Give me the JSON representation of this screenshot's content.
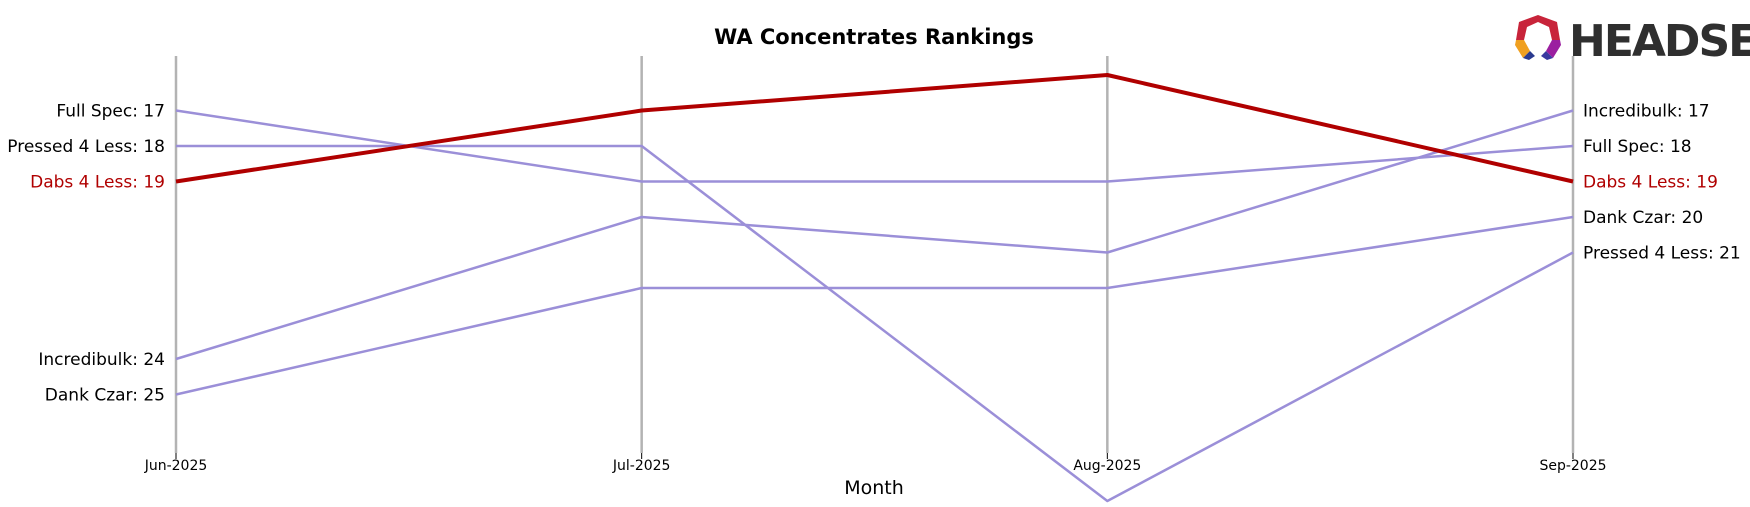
{
  "logo": {
    "text": "HEADSET"
  },
  "chart_data": {
    "type": "line",
    "title": "WA Concentrates Rankings",
    "xlabel": "Month",
    "ylabel": "",
    "x": [
      "Jun-2025",
      "Jul-2025",
      "Aug-2025",
      "Sep-2025"
    ],
    "y_inverted": true,
    "ylim": [
      16,
      29
    ],
    "grid": "vertical lines at each month",
    "legend": "none (end labels on left and right)",
    "highlight_color": "#b00000",
    "base_color": "#9b8fd8",
    "axis_line_color": "#b3b3b3",
    "series": [
      {
        "name": "Full Spec",
        "values": [
          17,
          19,
          19,
          18
        ],
        "highlight": false,
        "start_label": "Full Spec: 17",
        "end_label": "Full Spec: 18"
      },
      {
        "name": "Pressed 4 Less",
        "values": [
          18,
          18,
          28,
          21
        ],
        "highlight": false,
        "start_label": "Pressed 4 Less: 18",
        "end_label": "Pressed 4 Less: 21"
      },
      {
        "name": "Incredibulk",
        "values": [
          24,
          20,
          21,
          17
        ],
        "highlight": false,
        "start_label": "Incredibulk: 24",
        "end_label": "Incredibulk: 17"
      },
      {
        "name": "Dank Czar",
        "values": [
          25,
          22,
          22,
          20
        ],
        "highlight": false,
        "start_label": "Dank Czar: 25",
        "end_label": "Dank Czar: 20"
      },
      {
        "name": "Dabs 4 Less",
        "values": [
          19,
          17,
          16,
          19
        ],
        "highlight": true,
        "start_label": "Dabs 4 Less: 19",
        "end_label": "Dabs 4 Less: 19"
      }
    ]
  }
}
